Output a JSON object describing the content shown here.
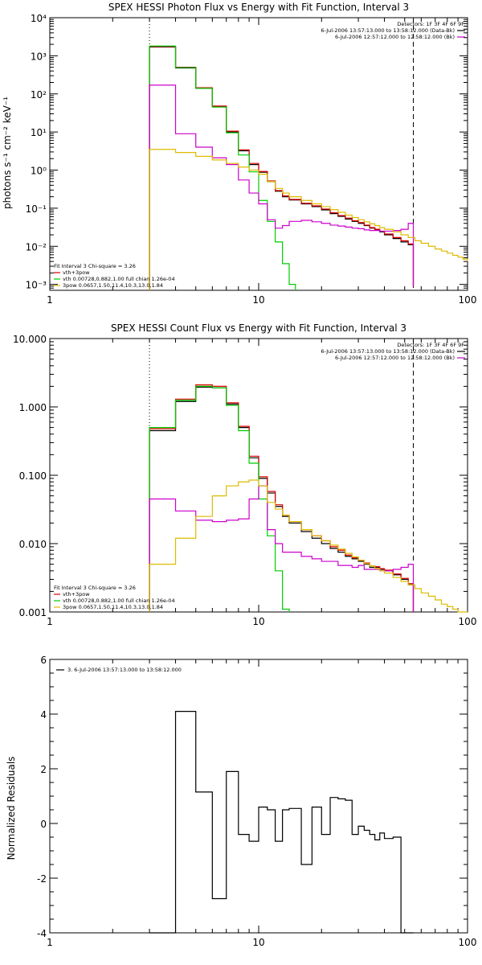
{
  "chart_data": [
    {
      "type": "line",
      "title": "SPEX HESSI Photon Flux vs Energy with Fit Function, Interval 3",
      "xlabel": "",
      "ylabel": "photons s⁻¹ cm⁻² keV⁻¹",
      "xscale": "log",
      "yscale": "log",
      "xlim": [
        1,
        100
      ],
      "ylim": [
        0.0007,
        10000
      ],
      "x_ticks": [
        1,
        10,
        100
      ],
      "x_tick_labels": [
        "1",
        "10",
        "100"
      ],
      "y_ticks": [
        0.001,
        0.01,
        0.1,
        1,
        10,
        100,
        1000,
        10000
      ],
      "y_tick_labels": [
        "10⁻³",
        "10⁻²",
        "10⁻¹",
        "10⁰",
        "10¹",
        "10²",
        "10³",
        "10⁴"
      ],
      "vlines": [
        {
          "x": 3.0,
          "style": "dotted"
        },
        {
          "x": 55.0,
          "style": "dashed"
        }
      ],
      "legend_top": {
        "placement": "top-right",
        "lines": [
          {
            "text": "Detectors: 1F 3F 4F 6F 9F",
            "color": ""
          },
          {
            "text": "6-Jul-2006 13:57:13.000 to 13:58:12.000 (Data-Bk)",
            "color": "#000000"
          },
          {
            "text": "6-Jul-2006 12:57:12.000 to 12:58:12.000 (Bk)",
            "color": "#cc00cc"
          }
        ]
      },
      "legend_fit": {
        "placement": "bottom-left",
        "lines": [
          {
            "text": "Fit Interval 3   Chi-square = 3.26",
            "color": "#000000"
          },
          {
            "text": "vth+3pow",
            "color": "#dd0000"
          },
          {
            "text": "vth 0.00728,0.882,1.00   full chian 1.26e-04",
            "color": "#00cc00"
          },
          {
            "text": "3pow 0.0657,1.50,11.4,10.3,13.0,1.84",
            "color": "#ddbb00"
          }
        ]
      },
      "series": [
        {
          "color": "#000000",
          "x": [
            3,
            4,
            5,
            6,
            7,
            8,
            9,
            10,
            11,
            12,
            13,
            14,
            16,
            18,
            20,
            22,
            24,
            26,
            28,
            30,
            32,
            34,
            36,
            38,
            40,
            44,
            48,
            52,
            55
          ],
          "y": [
            1700,
            480,
            140,
            46,
            10,
            3.2,
            1.4,
            0.88,
            0.5,
            0.28,
            0.2,
            0.165,
            0.13,
            0.11,
            0.09,
            0.072,
            0.061,
            0.052,
            0.045,
            0.04,
            0.035,
            0.03,
            0.027,
            0.024,
            0.02,
            0.016,
            0.013,
            0.011,
            0.0009
          ]
        },
        {
          "color": "#dd0000",
          "x": [
            3,
            4,
            5,
            6,
            7,
            8,
            9,
            10,
            11,
            12,
            13,
            14,
            16,
            18,
            20,
            22,
            24,
            26,
            28,
            30,
            32,
            34,
            36,
            38,
            40,
            44,
            48,
            52,
            55
          ],
          "y": [
            1750,
            500,
            145,
            48,
            10.5,
            3.4,
            1.5,
            0.92,
            0.52,
            0.29,
            0.21,
            0.17,
            0.135,
            0.115,
            0.095,
            0.076,
            0.064,
            0.055,
            0.047,
            0.042,
            0.036,
            0.031,
            0.028,
            0.025,
            0.021,
            0.017,
            0.014,
            0.0115,
            0.0009
          ]
        },
        {
          "color": "#00cc00",
          "x": [
            3,
            4,
            5,
            6,
            7,
            8,
            9,
            10,
            11,
            12,
            13,
            14,
            15
          ],
          "y": [
            1800,
            490,
            140,
            45,
            9.5,
            2.5,
            0.9,
            0.16,
            0.045,
            0.013,
            0.0035,
            0.001,
            0.0006
          ]
        },
        {
          "color": "#cc00cc",
          "x": [
            3,
            4,
            5,
            6,
            7,
            8,
            9,
            10,
            11,
            12,
            13,
            14,
            16,
            18,
            20,
            22,
            24,
            26,
            28,
            30,
            32,
            34,
            36,
            38,
            40,
            44,
            48,
            52,
            55
          ],
          "y": [
            170,
            9,
            4,
            2.1,
            1.4,
            0.55,
            0.25,
            0.13,
            0.05,
            0.03,
            0.035,
            0.045,
            0.048,
            0.044,
            0.04,
            0.036,
            0.034,
            0.032,
            0.03,
            0.029,
            0.027,
            0.026,
            0.026,
            0.025,
            0.025,
            0.026,
            0.028,
            0.04,
            0.0009
          ]
        },
        {
          "color": "#ddbb00",
          "x": [
            3,
            4,
            5,
            6,
            7,
            8,
            9,
            10,
            11,
            12,
            13,
            14,
            16,
            18,
            20,
            22,
            24,
            26,
            28,
            30,
            32,
            34,
            36,
            38,
            40,
            44,
            48,
            52,
            56,
            60,
            65,
            70,
            75,
            80,
            85,
            90,
            95,
            100
          ],
          "y": [
            3.5,
            2.9,
            2.3,
            1.85,
            1.5,
            1.2,
            1,
            0.78,
            0.5,
            0.33,
            0.25,
            0.2,
            0.16,
            0.13,
            0.11,
            0.092,
            0.078,
            0.066,
            0.057,
            0.05,
            0.044,
            0.039,
            0.035,
            0.031,
            0.028,
            0.024,
            0.02,
            0.017,
            0.014,
            0.012,
            0.01,
            0.0085,
            0.0075,
            0.0066,
            0.0058,
            0.0052,
            0.0046,
            0.004
          ]
        }
      ]
    },
    {
      "type": "line",
      "title": "SPEX HESSI Count Flux vs Energy with Fit Function, Interval 3",
      "xlabel": "",
      "ylabel": "",
      "xscale": "log",
      "yscale": "log",
      "xlim": [
        1,
        100
      ],
      "ylim": [
        0.001,
        10
      ],
      "x_ticks": [
        1,
        10,
        100
      ],
      "x_tick_labels": [
        "1",
        "10",
        "100"
      ],
      "y_ticks": [
        0.001,
        0.01,
        0.1,
        1,
        10
      ],
      "y_tick_labels": [
        "0.001",
        "0.010",
        "0.100",
        "1.000",
        "10.000"
      ],
      "vlines": [
        {
          "x": 3.0,
          "style": "dotted"
        },
        {
          "x": 55.0,
          "style": "dashed"
        }
      ],
      "legend_top": {
        "placement": "top-right",
        "lines": [
          {
            "text": "Detectors: 1F 3F 4F 6F 9F",
            "color": ""
          },
          {
            "text": "6-Jul-2006 13:57:13.000 to 13:58:12.000 (Data-Bk)",
            "color": "#000000"
          },
          {
            "text": "6-Jul-2006 12:57:12.000 to 12:58:12.000 (Bk)",
            "color": "#cc00cc"
          }
        ]
      },
      "legend_fit": {
        "placement": "bottom-left",
        "lines": [
          {
            "text": "Fit Interval 3   Chi-square = 3.26",
            "color": "#000000"
          },
          {
            "text": "vth+3pow",
            "color": "#dd0000"
          },
          {
            "text": "vth 0.00728,0.882,1.00   full chian 1.26e-04",
            "color": "#00cc00"
          },
          {
            "text": "3pow 0.0657,1.50,11.4,10.3,13.0,1.84",
            "color": "#ddbb00"
          }
        ]
      },
      "series": [
        {
          "color": "#000000",
          "x": [
            3,
            4,
            5,
            6,
            7,
            8,
            9,
            10,
            11,
            12,
            13,
            14,
            16,
            18,
            20,
            22,
            24,
            26,
            28,
            30,
            32,
            34,
            36,
            38,
            40,
            44,
            48,
            52,
            55
          ],
          "y": [
            0.45,
            1.2,
            1.95,
            1.9,
            1.1,
            0.5,
            0.18,
            0.09,
            0.055,
            0.035,
            0.025,
            0.02,
            0.015,
            0.012,
            0.01,
            0.0085,
            0.0075,
            0.0065,
            0.006,
            0.0055,
            0.005,
            0.0045,
            0.0045,
            0.0042,
            0.004,
            0.0035,
            0.003,
            0.0025,
            0.0009
          ]
        },
        {
          "color": "#dd0000",
          "x": [
            3,
            4,
            5,
            6,
            7,
            8,
            9,
            10,
            11,
            12,
            13,
            14,
            16,
            18,
            20,
            22,
            24,
            26,
            28,
            30,
            32,
            34,
            36,
            38,
            40,
            44,
            48,
            52,
            55
          ],
          "y": [
            0.48,
            1.3,
            2.1,
            2.0,
            1.15,
            0.52,
            0.19,
            0.095,
            0.058,
            0.037,
            0.026,
            0.021,
            0.016,
            0.013,
            0.011,
            0.009,
            0.008,
            0.0068,
            0.0062,
            0.0057,
            0.0052,
            0.0047,
            0.0046,
            0.0043,
            0.0041,
            0.0036,
            0.0031,
            0.0026,
            0.0009
          ]
        },
        {
          "color": "#00cc00",
          "x": [
            3,
            4,
            5,
            6,
            7,
            8,
            9,
            10,
            11,
            12,
            13,
            14
          ],
          "y": [
            0.5,
            1.25,
            2.0,
            1.9,
            1.05,
            0.45,
            0.15,
            0.045,
            0.013,
            0.004,
            0.0011,
            0.0009
          ]
        },
        {
          "color": "#cc00cc",
          "x": [
            3,
            4,
            5,
            6,
            7,
            8,
            9,
            10,
            11,
            12,
            13,
            14,
            16,
            18,
            20,
            22,
            24,
            26,
            28,
            30,
            32,
            34,
            36,
            38,
            40,
            44,
            48,
            52,
            55
          ],
          "y": [
            0.045,
            0.03,
            0.022,
            0.021,
            0.022,
            0.023,
            0.045,
            0.07,
            0.016,
            0.01,
            0.0075,
            0.0075,
            0.0065,
            0.006,
            0.0055,
            0.0055,
            0.0048,
            0.0048,
            0.0045,
            0.0048,
            0.0042,
            0.0042,
            0.0042,
            0.004,
            0.004,
            0.0042,
            0.0045,
            0.005,
            0.0009
          ]
        },
        {
          "color": "#ddbb00",
          "x": [
            3,
            4,
            5,
            6,
            7,
            8,
            9,
            10,
            11,
            12,
            13,
            14,
            16,
            18,
            20,
            22,
            24,
            26,
            28,
            30,
            32,
            34,
            36,
            38,
            40,
            44,
            48,
            52,
            56,
            60,
            65,
            70,
            75,
            80,
            85,
            90,
            95,
            100
          ],
          "y": [
            0.005,
            0.012,
            0.025,
            0.05,
            0.07,
            0.08,
            0.085,
            0.07,
            0.04,
            0.032,
            0.026,
            0.021,
            0.016,
            0.013,
            0.011,
            0.0095,
            0.0083,
            0.0072,
            0.0064,
            0.0057,
            0.0051,
            0.0047,
            0.0043,
            0.004,
            0.0037,
            0.0032,
            0.0028,
            0.0025,
            0.0022,
            0.0019,
            0.0017,
            0.0015,
            0.0013,
            0.0012,
            0.0011,
            0.001,
            0.00095,
            0.0009
          ]
        }
      ]
    },
    {
      "type": "line",
      "title": "",
      "xlabel": "",
      "ylabel": "Normalized Residuals",
      "xscale": "log",
      "yscale": "linear",
      "xlim": [
        1,
        100
      ],
      "ylim": [
        -4,
        6
      ],
      "x_ticks": [
        1,
        10,
        100
      ],
      "x_tick_labels": [
        "1",
        "10",
        "100"
      ],
      "y_ticks": [
        -4,
        -2,
        0,
        2,
        4,
        6
      ],
      "y_tick_labels": [
        "-4",
        "-2",
        "0",
        "2",
        "4",
        "6"
      ],
      "legend_top": {
        "placement": "top-left",
        "lines": [
          {
            "text": "3.  6-Jul-2006 13:57:13.000 to 13:58:12.000",
            "color": "#000000"
          }
        ]
      },
      "series": [
        {
          "color": "#000000",
          "x": [
            3,
            4,
            5,
            6,
            7,
            8,
            9,
            10,
            11,
            12,
            13,
            14,
            16,
            18,
            20,
            22,
            24,
            26,
            28,
            30,
            32,
            34,
            36,
            38,
            40,
            44,
            48,
            52,
            55
          ],
          "y": [
            -4.0,
            4.1,
            1.15,
            -2.75,
            1.9,
            -0.4,
            -0.65,
            0.6,
            0.5,
            -0.65,
            0.5,
            0.55,
            -1.5,
            0.6,
            -0.4,
            0.95,
            0.9,
            0.85,
            -0.4,
            -0.1,
            -0.25,
            -0.4,
            -0.6,
            -0.35,
            -0.55,
            -0.5,
            -4.0,
            -4.0,
            -4.0
          ]
        }
      ]
    }
  ]
}
